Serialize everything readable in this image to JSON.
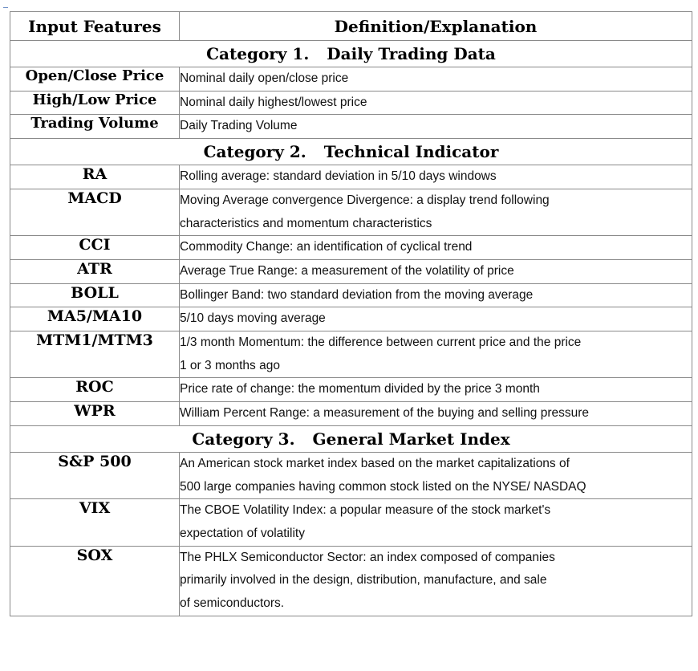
{
  "table": {
    "headers": {
      "feature": "Input Features",
      "definition": "Definition/Explanation"
    },
    "categories": [
      {
        "label": "Category 1.",
        "title": "Daily Trading Data",
        "rows": [
          {
            "feature": "Open/Close Price",
            "lines": [
              "Nominal daily open/close price"
            ]
          },
          {
            "feature": "High/Low Price",
            "lines": [
              "Nominal daily highest/lowest price"
            ]
          },
          {
            "feature": "Trading Volume",
            "lines": [
              "Daily Trading Volume"
            ]
          }
        ]
      },
      {
        "label": "Category 2.",
        "title": "Technical Indicator",
        "rows": [
          {
            "feature": "RA",
            "lines": [
              "Rolling average: standard deviation in 5/10 days windows"
            ]
          },
          {
            "feature": "MACD",
            "lines": [
              "Moving Average convergence Divergence: a display trend following",
              "characteristics and momentum characteristics"
            ]
          },
          {
            "feature": "CCI",
            "lines": [
              "Commodity Change: an identification of cyclical trend"
            ]
          },
          {
            "feature": "ATR",
            "lines": [
              "Average True Range: a measurement of the volatility of price"
            ]
          },
          {
            "feature": "BOLL",
            "lines": [
              "Bollinger Band: two standard deviation from the moving average"
            ]
          },
          {
            "feature": "MA5/MA10",
            "lines": [
              "5/10 days moving average"
            ]
          },
          {
            "feature": "MTM1/MTM3",
            "lines": [
              "1/3 month Momentum: the difference between current price and the price",
              "1 or 3 months ago"
            ]
          },
          {
            "feature": "ROC",
            "lines": [
              "Price rate of change: the momentum divided by the price 3 month"
            ]
          },
          {
            "feature": "WPR",
            "lines": [
              "William Percent Range: a measurement of the buying and selling pressure"
            ]
          }
        ]
      },
      {
        "label": "Category 3.",
        "title": "General Market Index",
        "rows": [
          {
            "feature": "S&P 500",
            "lines": [
              "An American stock market index based on the market capitalizations of",
              "500 large companies having common stock listed on the NYSE/ NASDAQ"
            ]
          },
          {
            "feature": "VIX",
            "lines": [
              "The CBOE Volatility Index: a popular measure of the stock market's",
              "expectation of volatility"
            ]
          },
          {
            "feature": "SOX",
            "lines": [
              "The PHLX Semiconductor Sector: an index composed of companies",
              "primarily involved in the design, distribution, manufacture, and sale",
              "of semiconductors."
            ]
          }
        ]
      }
    ]
  }
}
